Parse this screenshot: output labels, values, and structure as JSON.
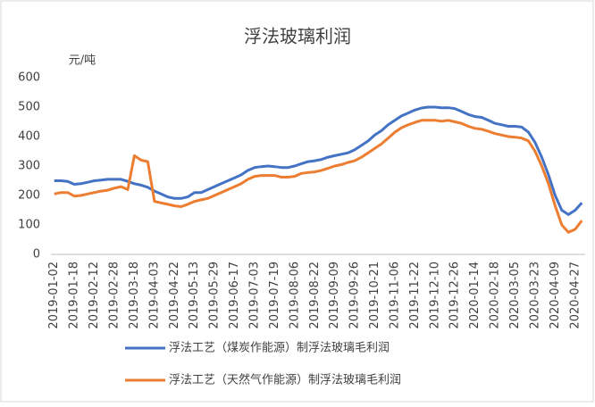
{
  "chart_data": {
    "type": "line",
    "title": "浮法玻璃利润",
    "y_label": "元/吨",
    "categories": [
      "2019-01-02",
      null,
      null,
      "2019-01-18",
      null,
      null,
      "2019-02-12",
      null,
      null,
      "2019-02-28",
      null,
      null,
      "2019-03-18",
      null,
      null,
      "2019-04-03",
      null,
      null,
      "2019-04-22",
      null,
      null,
      "2019-05-13",
      null,
      null,
      "2019-05-29",
      null,
      null,
      "2019-06-17",
      null,
      null,
      "2019-07-03",
      null,
      null,
      "2019-07-19",
      null,
      null,
      "2019-08-06",
      null,
      null,
      "2019-08-22",
      null,
      null,
      "2019-09-09",
      null,
      null,
      "2019-09-26",
      null,
      null,
      "2019-10-21",
      null,
      null,
      "2019-11-06",
      null,
      null,
      "2019-11-22",
      null,
      null,
      "2019-12-10",
      null,
      null,
      "2019-12-26",
      null,
      null,
      "2020-01-14",
      null,
      null,
      "2020-02-18",
      null,
      null,
      "2020-03-05",
      null,
      null,
      "2020-03-23",
      null,
      null,
      "2020-04-09",
      null,
      null,
      "2020-04-27",
      null
    ],
    "series": [
      {
        "name": "浮法工艺（煤炭作能源）制浮法玻璃毛利润",
        "color": "#4472c4",
        "values": [
          250,
          250,
          248,
          238,
          240,
          245,
          250,
          252,
          255,
          255,
          255,
          248,
          240,
          235,
          228,
          215,
          205,
          195,
          190,
          190,
          195,
          210,
          210,
          220,
          230,
          240,
          250,
          260,
          270,
          285,
          295,
          298,
          300,
          298,
          295,
          295,
          300,
          308,
          315,
          318,
          322,
          330,
          335,
          340,
          345,
          355,
          370,
          385,
          405,
          420,
          440,
          455,
          470,
          480,
          490,
          497,
          500,
          500,
          498,
          498,
          495,
          485,
          475,
          468,
          465,
          455,
          445,
          440,
          435,
          435,
          432,
          415,
          380,
          330,
          270,
          200,
          150,
          135,
          150,
          175
        ]
      },
      {
        "name": "浮法工艺（天然气作能源）制浮法玻璃毛利润",
        "color": "#ed7d31",
        "values": [
          205,
          210,
          210,
          198,
          200,
          205,
          210,
          215,
          218,
          225,
          230,
          220,
          335,
          320,
          315,
          180,
          175,
          170,
          165,
          162,
          170,
          180,
          185,
          190,
          200,
          210,
          220,
          230,
          240,
          255,
          265,
          268,
          268,
          268,
          262,
          262,
          265,
          275,
          278,
          280,
          285,
          292,
          300,
          305,
          312,
          318,
          330,
          345,
          360,
          375,
          395,
          415,
          430,
          440,
          448,
          455,
          455,
          455,
          452,
          455,
          450,
          445,
          435,
          428,
          425,
          418,
          410,
          405,
          400,
          398,
          395,
          385,
          350,
          300,
          240,
          165,
          100,
          75,
          85,
          115
        ]
      }
    ],
    "ylim": [
      0,
      600
    ],
    "yticks": [
      0,
      100,
      200,
      300,
      400,
      500,
      600
    ],
    "grid": false
  }
}
